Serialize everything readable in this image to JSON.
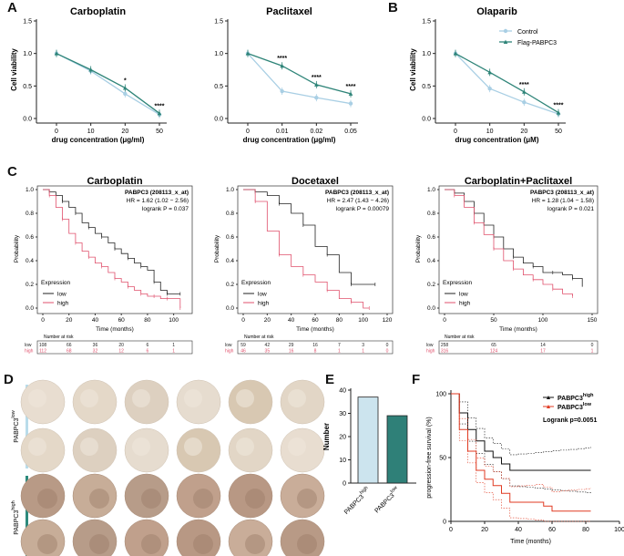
{
  "panel_letters": {
    "A": "A",
    "B": "B",
    "C": "C",
    "D": "D",
    "E": "E",
    "F": "F"
  },
  "colors": {
    "control": "#a9cfe4",
    "flag": "#2e8478",
    "km_low": "#222222",
    "km_high": "#e0506c",
    "bar_high": "#cce4ee",
    "bar_low": "#2f8078",
    "f_high": "#111111",
    "f_low": "#e03a22",
    "d_low": "#b9dcea",
    "d_high": "#2c8a7c"
  },
  "chart_data": [
    {
      "type": "line",
      "title": "Carboplatin",
      "xlabel": "drug concentration (μg/ml)",
      "ylabel": "Cell viability",
      "categories": [
        "0",
        "10",
        "20",
        "50"
      ],
      "ylim": [
        0,
        1.5
      ],
      "yticks": [
        "0.0",
        "0.5",
        "1.0",
        "1.5"
      ],
      "series": [
        {
          "name": "Control",
          "values": [
            1.0,
            0.73,
            0.38,
            0.06
          ]
        },
        {
          "name": "Flag-PABPC3",
          "values": [
            1.0,
            0.75,
            0.47,
            0.08
          ]
        }
      ],
      "annotations": [
        "*",
        "****"
      ]
    },
    {
      "type": "line",
      "title": "Paclitaxel",
      "xlabel": "drug concentration (μg/ml)",
      "ylabel": "",
      "categories": [
        "0",
        "0.01",
        "0.02",
        "0.05"
      ],
      "ylim": [
        0,
        1.5
      ],
      "yticks": [
        "0.0",
        "0.5",
        "1.0",
        "1.5"
      ],
      "series": [
        {
          "name": "Control",
          "values": [
            1.0,
            0.42,
            0.32,
            0.23
          ]
        },
        {
          "name": "Flag-PABPC3",
          "values": [
            1.0,
            0.81,
            0.52,
            0.38
          ]
        }
      ],
      "annotations": [
        "****",
        "****",
        "****"
      ]
    },
    {
      "type": "line",
      "title": "Olaparib",
      "xlabel": "drug concentration (μM)",
      "ylabel": "Cell viability",
      "categories": [
        "0",
        "10",
        "20",
        "50"
      ],
      "ylim": [
        0,
        1.5
      ],
      "yticks": [
        "0.0",
        "0.5",
        "1.0",
        "1.5"
      ],
      "series": [
        {
          "name": "Control",
          "values": [
            1.0,
            0.46,
            0.25,
            0.07
          ]
        },
        {
          "name": "Flag-PABPC3",
          "values": [
            1.0,
            0.71,
            0.41,
            0.09
          ]
        }
      ],
      "annotations": [
        "****",
        "****"
      ],
      "legend": "top-right"
    },
    {
      "type": "line",
      "title": "Carboplatin",
      "xlabel": "Time (months)",
      "ylabel": "Probability",
      "xlim": [
        0,
        110
      ],
      "xticks": [
        "0",
        "20",
        "40",
        "60",
        "80",
        "100"
      ],
      "ylim": [
        0,
        1
      ],
      "yticks": [
        "0.0",
        "0.2",
        "0.4",
        "0.6",
        "0.8",
        "1.0"
      ],
      "info": [
        "PABPC3 (208113_x_at)",
        "HR = 1.62 (1.02 − 2.56)",
        "logrank P = 0.037"
      ],
      "legend_title": "Expression",
      "series": [
        {
          "name": "low",
          "x": [
            0,
            5,
            10,
            15,
            20,
            25,
            30,
            35,
            40,
            45,
            50,
            55,
            60,
            65,
            70,
            75,
            80,
            85,
            90,
            95,
            100,
            105
          ],
          "values": [
            1.0,
            0.98,
            0.95,
            0.9,
            0.85,
            0.8,
            0.72,
            0.68,
            0.63,
            0.6,
            0.55,
            0.5,
            0.46,
            0.42,
            0.38,
            0.35,
            0.32,
            0.22,
            0.15,
            0.12,
            0.12,
            0.12
          ]
        },
        {
          "name": "high",
          "x": [
            0,
            5,
            10,
            15,
            20,
            25,
            30,
            35,
            40,
            45,
            50,
            55,
            60,
            65,
            70,
            75,
            80,
            85,
            90,
            95,
            100,
            105
          ],
          "values": [
            1.0,
            0.95,
            0.85,
            0.75,
            0.63,
            0.55,
            0.48,
            0.43,
            0.38,
            0.35,
            0.3,
            0.25,
            0.22,
            0.18,
            0.15,
            0.12,
            0.1,
            0.1,
            0.08,
            0.08,
            0.08,
            0.0
          ]
        }
      ],
      "risk_label": "Number at risk",
      "risk_rows": [
        {
          "name": "low",
          "counts": [
            "108",
            "66",
            "36",
            "20",
            "6",
            "1"
          ]
        },
        {
          "name": "high",
          "counts": [
            "112",
            "68",
            "32",
            "12",
            "6",
            "1"
          ]
        }
      ]
    },
    {
      "type": "line",
      "title": "Docetaxel",
      "xlabel": "Time (months)",
      "ylabel": "Probability",
      "xlim": [
        0,
        120
      ],
      "xticks": [
        "0",
        "20",
        "40",
        "60",
        "80",
        "100",
        "120"
      ],
      "ylim": [
        0,
        1
      ],
      "yticks": [
        "0.0",
        "0.2",
        "0.4",
        "0.6",
        "0.8",
        "1.0"
      ],
      "info": [
        "PABPC3 (208113_x_at)",
        "HR = 2.47 (1.43 − 4.26)",
        "logrank P = 0.00079"
      ],
      "legend_title": "Expression",
      "series": [
        {
          "name": "low",
          "x": [
            0,
            10,
            20,
            30,
            40,
            50,
            60,
            70,
            80,
            90,
            100,
            110
          ],
          "values": [
            1.0,
            0.98,
            0.95,
            0.88,
            0.8,
            0.7,
            0.52,
            0.45,
            0.3,
            0.2,
            0.2,
            0.2
          ]
        },
        {
          "name": "high",
          "x": [
            0,
            10,
            20,
            30,
            40,
            50,
            60,
            70,
            80,
            90,
            100,
            105
          ],
          "values": [
            1.0,
            0.9,
            0.65,
            0.45,
            0.35,
            0.28,
            0.22,
            0.15,
            0.08,
            0.05,
            0.0,
            0.0
          ]
        }
      ],
      "risk_label": "Number at risk",
      "risk_rows": [
        {
          "name": "low",
          "counts": [
            "59",
            "42",
            "29",
            "16",
            "7",
            "3",
            "0"
          ]
        },
        {
          "name": "high",
          "counts": [
            "46",
            "35",
            "16",
            "8",
            "1",
            "1",
            "0"
          ]
        }
      ]
    },
    {
      "type": "line",
      "title": "Carboplatin+Paclitaxel",
      "xlabel": "Time (months)",
      "ylabel": "Probability",
      "xlim": [
        0,
        150
      ],
      "xticks": [
        "0",
        "50",
        "100",
        "150"
      ],
      "ylim": [
        0,
        1
      ],
      "yticks": [
        "0.0",
        "0.2",
        "0.4",
        "0.6",
        "0.8",
        "1.0"
      ],
      "info": [
        "PABPC3 (208113_x_at)",
        "HR = 1.28 (1.04 − 1.58)",
        "logrank P = 0.021"
      ],
      "legend_title": "Expression",
      "series": [
        {
          "name": "low",
          "x": [
            0,
            10,
            20,
            30,
            40,
            50,
            60,
            70,
            80,
            90,
            100,
            110,
            120,
            130,
            140
          ],
          "values": [
            1.0,
            0.97,
            0.9,
            0.8,
            0.7,
            0.6,
            0.5,
            0.43,
            0.38,
            0.35,
            0.3,
            0.3,
            0.28,
            0.25,
            0.18
          ]
        },
        {
          "name": "high",
          "x": [
            0,
            10,
            20,
            30,
            40,
            50,
            60,
            70,
            80,
            90,
            100,
            110,
            120,
            130
          ],
          "values": [
            1.0,
            0.95,
            0.85,
            0.72,
            0.62,
            0.5,
            0.4,
            0.33,
            0.28,
            0.24,
            0.2,
            0.16,
            0.12,
            0.1
          ]
        }
      ],
      "risk_label": "Number at risk",
      "risk_rows": [
        {
          "name": "low",
          "counts": [
            "258",
            "65",
            "14",
            "0"
          ]
        },
        {
          "name": "high",
          "counts": [
            "316",
            "124",
            "17",
            "1"
          ]
        }
      ]
    },
    {
      "type": "bar",
      "xlabel": "",
      "ylabel": "Number",
      "ylim": [
        0,
        40
      ],
      "yticks": [
        "0",
        "10",
        "20",
        "30",
        "40"
      ],
      "categories": [
        "PABPC3 high",
        "PABPC3 low"
      ],
      "values": [
        37,
        29
      ]
    },
    {
      "type": "line",
      "xlabel": "Time (months)",
      "ylabel": "progression-free survival (%)",
      "xlim": [
        0,
        100
      ],
      "xticks": [
        "0",
        "20",
        "40",
        "60",
        "80",
        "100"
      ],
      "ylim": [
        0,
        100
      ],
      "yticks": [
        "0",
        "50",
        "100"
      ],
      "logrank": "Logrank p=0.0051",
      "series": [
        {
          "name": "PABPC3 high",
          "x": [
            0,
            5,
            10,
            15,
            20,
            25,
            30,
            35,
            40,
            45,
            50,
            55,
            60,
            65,
            70,
            75,
            80,
            83
          ],
          "values": [
            100,
            85,
            72,
            63,
            55,
            50,
            45,
            40,
            40,
            40,
            40,
            40,
            40,
            40,
            40,
            40,
            40,
            40
          ]
        },
        {
          "name": "PABPC3 low",
          "x": [
            0,
            5,
            10,
            15,
            20,
            25,
            30,
            35,
            40,
            45,
            50,
            55,
            60,
            65,
            70,
            75,
            80,
            83
          ],
          "values": [
            100,
            72,
            55,
            40,
            33,
            28,
            22,
            15,
            15,
            15,
            15,
            12,
            8,
            8,
            8,
            8,
            8,
            8
          ]
        }
      ]
    }
  ],
  "legend_labels": {
    "control": "Control",
    "flag": "Flag-PABPC3",
    "km_low": "low",
    "km_high": "high",
    "f_high": "PABPC3",
    "f_low": "PABPC3",
    "f_high_sup": "high",
    "f_low_sup": "low"
  },
  "ihc_labels": {
    "low": "PABPC3",
    "low_sup": "low",
    "high": "PABPC3",
    "high_sup": "high"
  },
  "bar_tick_labels": [
    {
      "main": "PABPC3",
      "sup": "high"
    },
    {
      "main": "PABPC3",
      "sup": "low"
    }
  ]
}
